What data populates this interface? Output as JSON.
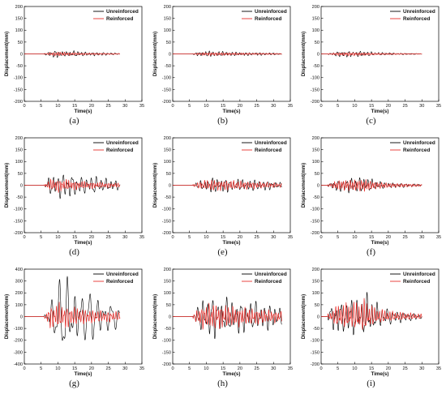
{
  "panels": [
    {
      "label": "(a)"
    },
    {
      "label": "(b)"
    },
    {
      "label": "(c)"
    },
    {
      "label": "(d)"
    },
    {
      "label": "(e)"
    },
    {
      "label": "(f)"
    },
    {
      "label": "(g)"
    },
    {
      "label": "(h)"
    },
    {
      "label": "(i)"
    }
  ],
  "colors": {
    "unreinforced": "#000000",
    "reinforced": "#e8302c"
  },
  "chart_data": [
    {
      "type": "line",
      "label": "(a)",
      "xlabel": "Time(s)",
      "ylabel": "Displacement(mm)",
      "xlim": [
        0,
        35
      ],
      "ylim": [
        -200,
        200
      ],
      "xticks": [
        0,
        5,
        10,
        15,
        20,
        25,
        30,
        35
      ],
      "yticks": [
        -200,
        -150,
        -100,
        -50,
        0,
        50,
        100,
        150,
        200
      ],
      "legend": "top-right",
      "series": [
        {
          "name": "Unreinforced",
          "duration": [
            6,
            28.5
          ],
          "peak": 16,
          "freq": 0.9,
          "seed": 1,
          "envelope": [
            [
              6,
              0.15
            ],
            [
              8,
              0.8
            ],
            [
              9.5,
              1
            ],
            [
              12,
              0.6
            ],
            [
              15,
              0.8
            ],
            [
              18,
              0.5
            ],
            [
              22,
              0.45
            ],
            [
              26,
              0.3
            ],
            [
              28.5,
              0.15
            ]
          ]
        },
        {
          "name": "Reinforced",
          "duration": [
            6,
            28.5
          ],
          "peak": 9,
          "freq": 1.6,
          "seed": 2,
          "envelope": [
            [
              6,
              0.2
            ],
            [
              8,
              0.8
            ],
            [
              10,
              1
            ],
            [
              14,
              0.7
            ],
            [
              18,
              0.5
            ],
            [
              22,
              0.4
            ],
            [
              28.5,
              0.2
            ]
          ]
        }
      ]
    },
    {
      "type": "line",
      "label": "(b)",
      "xlabel": "Time(s)",
      "ylabel": "Displacement(mm)",
      "xlim": [
        0,
        35
      ],
      "ylim": [
        -200,
        200
      ],
      "xticks": [
        0,
        5,
        10,
        15,
        20,
        25,
        30,
        35
      ],
      "yticks": [
        -200,
        -150,
        -100,
        -50,
        0,
        50,
        100,
        150,
        200
      ],
      "legend": "top-right",
      "series": [
        {
          "name": "Unreinforced",
          "duration": [
            6,
            32.5
          ],
          "peak": 12,
          "freq": 1.0,
          "seed": 3,
          "envelope": [
            [
              6,
              0.2
            ],
            [
              8,
              0.8
            ],
            [
              11,
              1
            ],
            [
              15,
              0.8
            ],
            [
              20,
              0.6
            ],
            [
              26,
              0.5
            ],
            [
              32.5,
              0.25
            ]
          ]
        },
        {
          "name": "Reinforced",
          "duration": [
            6,
            32.5
          ],
          "peak": 7,
          "freq": 1.7,
          "seed": 4,
          "envelope": [
            [
              6,
              0.3
            ],
            [
              9,
              0.9
            ],
            [
              12,
              1
            ],
            [
              18,
              0.7
            ],
            [
              25,
              0.5
            ],
            [
              32.5,
              0.3
            ]
          ]
        }
      ]
    },
    {
      "type": "line",
      "label": "(c)",
      "xlabel": "Time(s)",
      "ylabel": "Displacement(mm)",
      "xlim": [
        0,
        35
      ],
      "ylim": [
        -200,
        200
      ],
      "xticks": [
        0,
        5,
        10,
        15,
        20,
        25,
        30,
        35
      ],
      "yticks": [
        -200,
        -150,
        -100,
        -50,
        0,
        50,
        100,
        150,
        200
      ],
      "legend": "top-right",
      "series": [
        {
          "name": "Unreinforced",
          "duration": [
            2,
            30
          ],
          "peak": 13,
          "freq": 0.9,
          "seed": 5,
          "envelope": [
            [
              2,
              0.15
            ],
            [
              4,
              0.7
            ],
            [
              7,
              1
            ],
            [
              10,
              0.9
            ],
            [
              13,
              0.8
            ],
            [
              17,
              0.5
            ],
            [
              22,
              0.3
            ],
            [
              30,
              0.1
            ]
          ]
        },
        {
          "name": "Reinforced",
          "duration": [
            2,
            30
          ],
          "peak": 8,
          "freq": 1.7,
          "seed": 6,
          "envelope": [
            [
              2,
              0.2
            ],
            [
              5,
              0.8
            ],
            [
              8,
              1
            ],
            [
              12,
              0.8
            ],
            [
              17,
              0.5
            ],
            [
              24,
              0.3
            ],
            [
              30,
              0.15
            ]
          ]
        }
      ]
    },
    {
      "type": "line",
      "label": "(d)",
      "xlabel": "Time(s)",
      "ylabel": "Displacement(mm)",
      "xlim": [
        0,
        35
      ],
      "ylim": [
        -200,
        200
      ],
      "xticks": [
        0,
        5,
        10,
        15,
        20,
        25,
        30,
        35
      ],
      "yticks": [
        -200,
        -150,
        -100,
        -50,
        0,
        50,
        100,
        150,
        200
      ],
      "legend": "top-right",
      "series": [
        {
          "name": "Unreinforced",
          "duration": [
            6,
            28.5
          ],
          "peak": 55,
          "freq": 0.7,
          "seed": 7,
          "envelope": [
            [
              6,
              0.1
            ],
            [
              7.5,
              0.7
            ],
            [
              10,
              0.9
            ],
            [
              12,
              1
            ],
            [
              15,
              0.75
            ],
            [
              18,
              0.6
            ],
            [
              21,
              0.7
            ],
            [
              24,
              0.5
            ],
            [
              28.5,
              0.35
            ]
          ]
        },
        {
          "name": "Reinforced",
          "duration": [
            6,
            28.5
          ],
          "peak": 28,
          "freq": 1.5,
          "seed": 8,
          "envelope": [
            [
              6,
              0.2
            ],
            [
              8,
              0.9
            ],
            [
              10,
              1
            ],
            [
              13,
              0.8
            ],
            [
              17,
              0.6
            ],
            [
              22,
              0.45
            ],
            [
              28.5,
              0.3
            ]
          ]
        }
      ]
    },
    {
      "type": "line",
      "label": "(e)",
      "xlabel": "Time(s)",
      "ylabel": "Displacement(mm)",
      "xlim": [
        0,
        35
      ],
      "ylim": [
        -200,
        200
      ],
      "xticks": [
        0,
        5,
        10,
        15,
        20,
        25,
        30,
        35
      ],
      "yticks": [
        -200,
        -150,
        -100,
        -50,
        0,
        50,
        100,
        150,
        200
      ],
      "legend": "top-right",
      "series": [
        {
          "name": "Unreinforced",
          "duration": [
            6,
            32.5
          ],
          "peak": 32,
          "freq": 0.8,
          "seed": 9,
          "envelope": [
            [
              6,
              0.15
            ],
            [
              9,
              0.7
            ],
            [
              12,
              1
            ],
            [
              16,
              0.85
            ],
            [
              20,
              0.75
            ],
            [
              25,
              0.7
            ],
            [
              30,
              0.55
            ],
            [
              32.5,
              0.3
            ]
          ]
        },
        {
          "name": "Reinforced",
          "duration": [
            6,
            32.5
          ],
          "peak": 24,
          "freq": 1.4,
          "seed": 10,
          "envelope": [
            [
              6,
              0.2
            ],
            [
              9,
              0.8
            ],
            [
              12,
              1
            ],
            [
              18,
              0.8
            ],
            [
              25,
              0.6
            ],
            [
              32.5,
              0.35
            ]
          ]
        }
      ]
    },
    {
      "type": "line",
      "label": "(f)",
      "xlabel": "Time(s)",
      "ylabel": "Displacement(mm)",
      "xlim": [
        0,
        35
      ],
      "ylim": [
        -200,
        200
      ],
      "xticks": [
        0,
        5,
        10,
        15,
        20,
        25,
        30,
        35
      ],
      "yticks": [
        -200,
        -150,
        -100,
        -50,
        0,
        50,
        100,
        150,
        200
      ],
      "legend": "top-right",
      "series": [
        {
          "name": "Unreinforced",
          "duration": [
            2,
            30
          ],
          "peak": 32,
          "freq": 0.8,
          "seed": 11,
          "envelope": [
            [
              2,
              0.1
            ],
            [
              4,
              0.7
            ],
            [
              7,
              0.9
            ],
            [
              10,
              1
            ],
            [
              14,
              0.95
            ],
            [
              17,
              0.5
            ],
            [
              21,
              0.35
            ],
            [
              25,
              0.25
            ],
            [
              30,
              0.15
            ]
          ]
        },
        {
          "name": "Reinforced",
          "duration": [
            2,
            30
          ],
          "peak": 26,
          "freq": 1.5,
          "seed": 12,
          "envelope": [
            [
              2,
              0.15
            ],
            [
              5,
              0.8
            ],
            [
              9,
              0.9
            ],
            [
              13,
              1
            ],
            [
              16,
              0.6
            ],
            [
              21,
              0.35
            ],
            [
              30,
              0.2
            ]
          ]
        }
      ]
    },
    {
      "type": "line",
      "label": "(g)",
      "xlabel": "Time(s)",
      "ylabel": "Displacement(mm)",
      "xlim": [
        0,
        35
      ],
      "ylim": [
        -400,
        400
      ],
      "xticks": [
        0,
        5,
        10,
        15,
        20,
        25,
        30,
        35
      ],
      "yticks": [
        -400,
        -300,
        -200,
        -100,
        0,
        100,
        200,
        300,
        400
      ],
      "legend": "top-right",
      "series": [
        {
          "name": "Unreinforced",
          "duration": [
            6,
            28.5
          ],
          "peak": 350,
          "freq": 0.45,
          "seed": 13,
          "envelope": [
            [
              6,
              0.05
            ],
            [
              8,
              0.5
            ],
            [
              10,
              0.75
            ],
            [
              12.5,
              1
            ],
            [
              15,
              0.8
            ],
            [
              18,
              0.55
            ],
            [
              21,
              0.6
            ],
            [
              24,
              0.45
            ],
            [
              28.5,
              0.2
            ]
          ]
        },
        {
          "name": "Reinforced",
          "duration": [
            6,
            28.5
          ],
          "peak": 110,
          "freq": 1.3,
          "seed": 14,
          "envelope": [
            [
              6,
              0.2
            ],
            [
              8,
              0.9
            ],
            [
              10,
              1
            ],
            [
              13,
              0.8
            ],
            [
              17,
              0.6
            ],
            [
              22,
              0.45
            ],
            [
              28.5,
              0.35
            ]
          ]
        }
      ]
    },
    {
      "type": "line",
      "label": "(h)",
      "xlabel": "Time(s)",
      "ylabel": "Displacement(mm)",
      "xlim": [
        0,
        35
      ],
      "ylim": [
        -200,
        200
      ],
      "xticks": [
        0,
        5,
        10,
        15,
        20,
        25,
        30,
        35
      ],
      "yticks": [
        -200,
        -150,
        -100,
        -50,
        0,
        50,
        100,
        150,
        200
      ],
      "legend": "top-right",
      "series": [
        {
          "name": "Unreinforced",
          "duration": [
            6,
            32.5
          ],
          "peak": 95,
          "freq": 0.7,
          "seed": 15,
          "envelope": [
            [
              6,
              0.1
            ],
            [
              8,
              0.6
            ],
            [
              11,
              1
            ],
            [
              14,
              0.8
            ],
            [
              18,
              0.75
            ],
            [
              22,
              0.7
            ],
            [
              26,
              0.6
            ],
            [
              30,
              0.55
            ],
            [
              32.5,
              0.35
            ]
          ]
        },
        {
          "name": "Reinforced",
          "duration": [
            6,
            32.5
          ],
          "peak": 55,
          "freq": 1.4,
          "seed": 16,
          "envelope": [
            [
              6,
              0.2
            ],
            [
              9,
              0.9
            ],
            [
              12,
              1
            ],
            [
              17,
              0.8
            ],
            [
              24,
              0.6
            ],
            [
              32.5,
              0.4
            ]
          ]
        }
      ]
    },
    {
      "type": "line",
      "label": "(i)",
      "xlabel": "Time(s)",
      "ylabel": "Displacement(mm)",
      "xlim": [
        0,
        35
      ],
      "ylim": [
        -200,
        200
      ],
      "xticks": [
        0,
        5,
        10,
        15,
        20,
        25,
        30,
        35
      ],
      "yticks": [
        -200,
        -150,
        -100,
        -50,
        0,
        50,
        100,
        150,
        200
      ],
      "legend": "top-right",
      "series": [
        {
          "name": "Unreinforced",
          "duration": [
            2,
            30
          ],
          "peak": 100,
          "freq": 0.65,
          "seed": 17,
          "envelope": [
            [
              2,
              0.1
            ],
            [
              4,
              0.8
            ],
            [
              6,
              0.6
            ],
            [
              9,
              0.85
            ],
            [
              12,
              0.7
            ],
            [
              14,
              1
            ],
            [
              16,
              0.6
            ],
            [
              19,
              0.35
            ],
            [
              23,
              0.25
            ],
            [
              30,
              0.1
            ]
          ]
        },
        {
          "name": "Reinforced",
          "duration": [
            2,
            30
          ],
          "peak": 70,
          "freq": 1.3,
          "seed": 18,
          "envelope": [
            [
              2,
              0.15
            ],
            [
              5,
              0.7
            ],
            [
              9,
              0.8
            ],
            [
              13,
              1
            ],
            [
              16,
              0.5
            ],
            [
              21,
              0.3
            ],
            [
              30,
              0.15
            ]
          ]
        }
      ]
    }
  ]
}
